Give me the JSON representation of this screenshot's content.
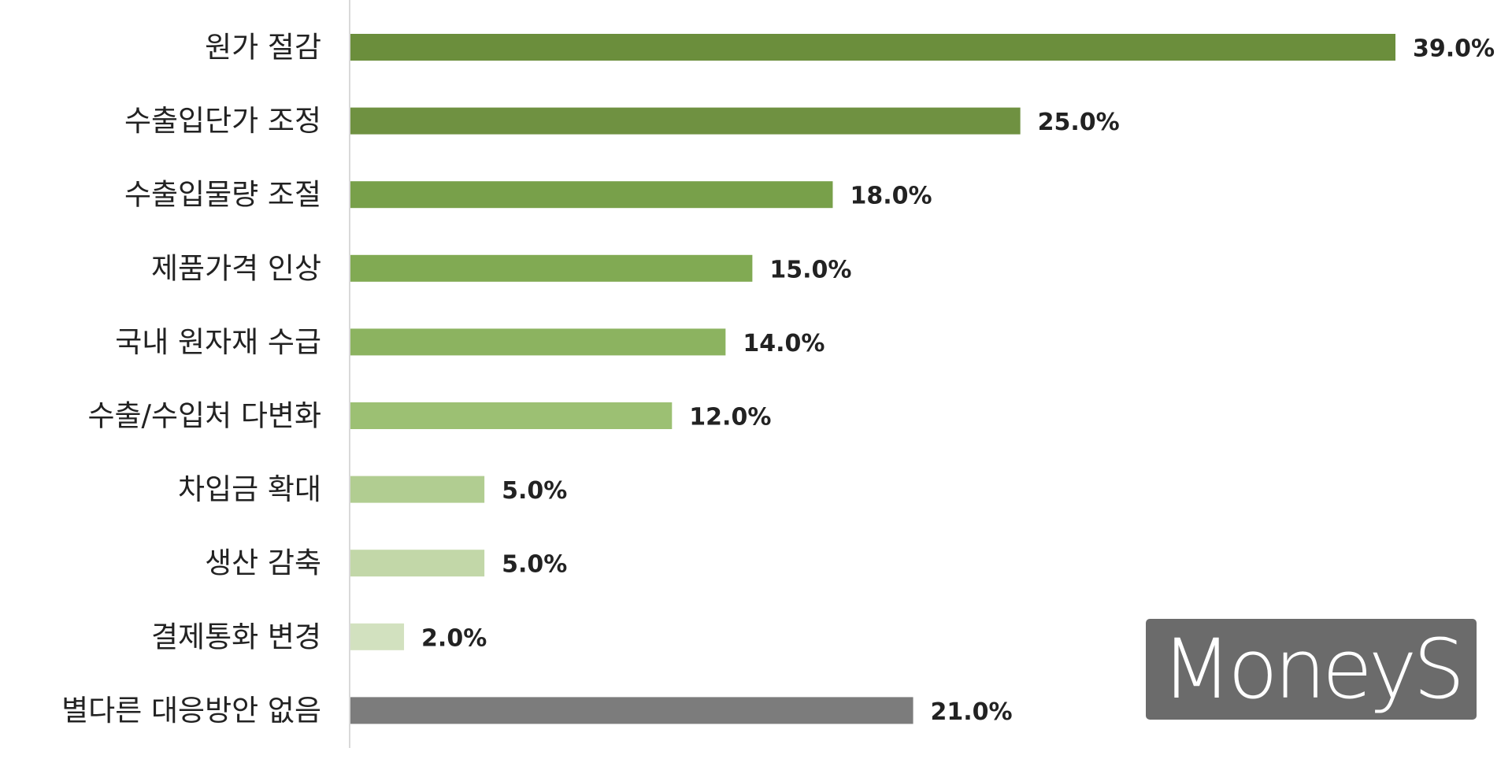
{
  "chart_data": {
    "type": "bar",
    "orientation": "horizontal",
    "title": "",
    "xlabel": "",
    "ylabel": "",
    "xlim": [
      0,
      39
    ],
    "grid": false,
    "categories": [
      "원가 절감",
      "수출입단가 조정",
      "수출입물량 조절",
      "제품가격 인상",
      "국내 원자재 수급",
      "수출/수입처 다변화",
      "차입금 확대",
      "생산 감축",
      "결제통화 변경",
      "별다른 대응방안 없음"
    ],
    "values": [
      39.0,
      25.0,
      18.0,
      15.0,
      14.0,
      12.0,
      5.0,
      5.0,
      2.0,
      21.0
    ],
    "value_labels": [
      "39.0%",
      "25.0%",
      "18.0%",
      "15.0%",
      "14.0%",
      "12.0%",
      "5.0%",
      "5.0%",
      "2.0%",
      "21.0%"
    ],
    "bar_colors": [
      "#6b8e3c",
      "#6f9141",
      "#78a04a",
      "#81aa53",
      "#8cb360",
      "#9cc073",
      "#b1cd91",
      "#c2d7a8",
      "#d2e1bf",
      "#7c7c7c"
    ]
  },
  "watermark": {
    "text": "MoneyS",
    "color": "#6b6b6b"
  }
}
